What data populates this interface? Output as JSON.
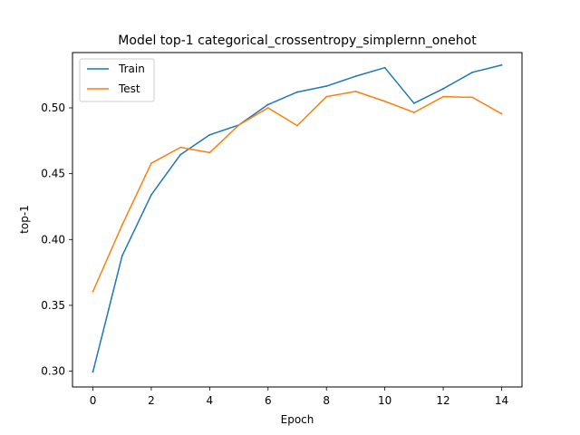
{
  "chart_data": {
    "type": "line",
    "title": "Model top-1 categorical_crossentropy_simplernn_onehot",
    "xlabel": "Epoch",
    "ylabel": "top-1",
    "xlim": [
      -0.7,
      14.7
    ],
    "ylim": [
      0.288,
      0.542
    ],
    "x_ticks": [
      0,
      2,
      4,
      6,
      8,
      10,
      12,
      14
    ],
    "y_ticks": [
      0.3,
      0.35,
      0.4,
      0.45,
      0.5
    ],
    "y_tick_labels": [
      "0.30",
      "0.35",
      "0.40",
      "0.45",
      "0.50"
    ],
    "legend_position": "top-left",
    "grid": false,
    "x": [
      0,
      1,
      2,
      3,
      4,
      5,
      6,
      7,
      8,
      9,
      10,
      11,
      12,
      13,
      14
    ],
    "series": [
      {
        "name": "Train",
        "color": "#1f77b4",
        "values": [
          0.2995,
          0.3875,
          0.434,
          0.4645,
          0.4795,
          0.487,
          0.5025,
          0.512,
          0.5165,
          0.524,
          0.5305,
          0.5035,
          0.5145,
          0.527,
          0.5325
        ]
      },
      {
        "name": "Test",
        "color": "#ff7f0e",
        "values": [
          0.3605,
          0.411,
          0.458,
          0.47,
          0.466,
          0.487,
          0.5,
          0.4865,
          0.5085,
          0.5125,
          0.505,
          0.4965,
          0.5085,
          0.508,
          0.4955
        ]
      }
    ]
  }
}
